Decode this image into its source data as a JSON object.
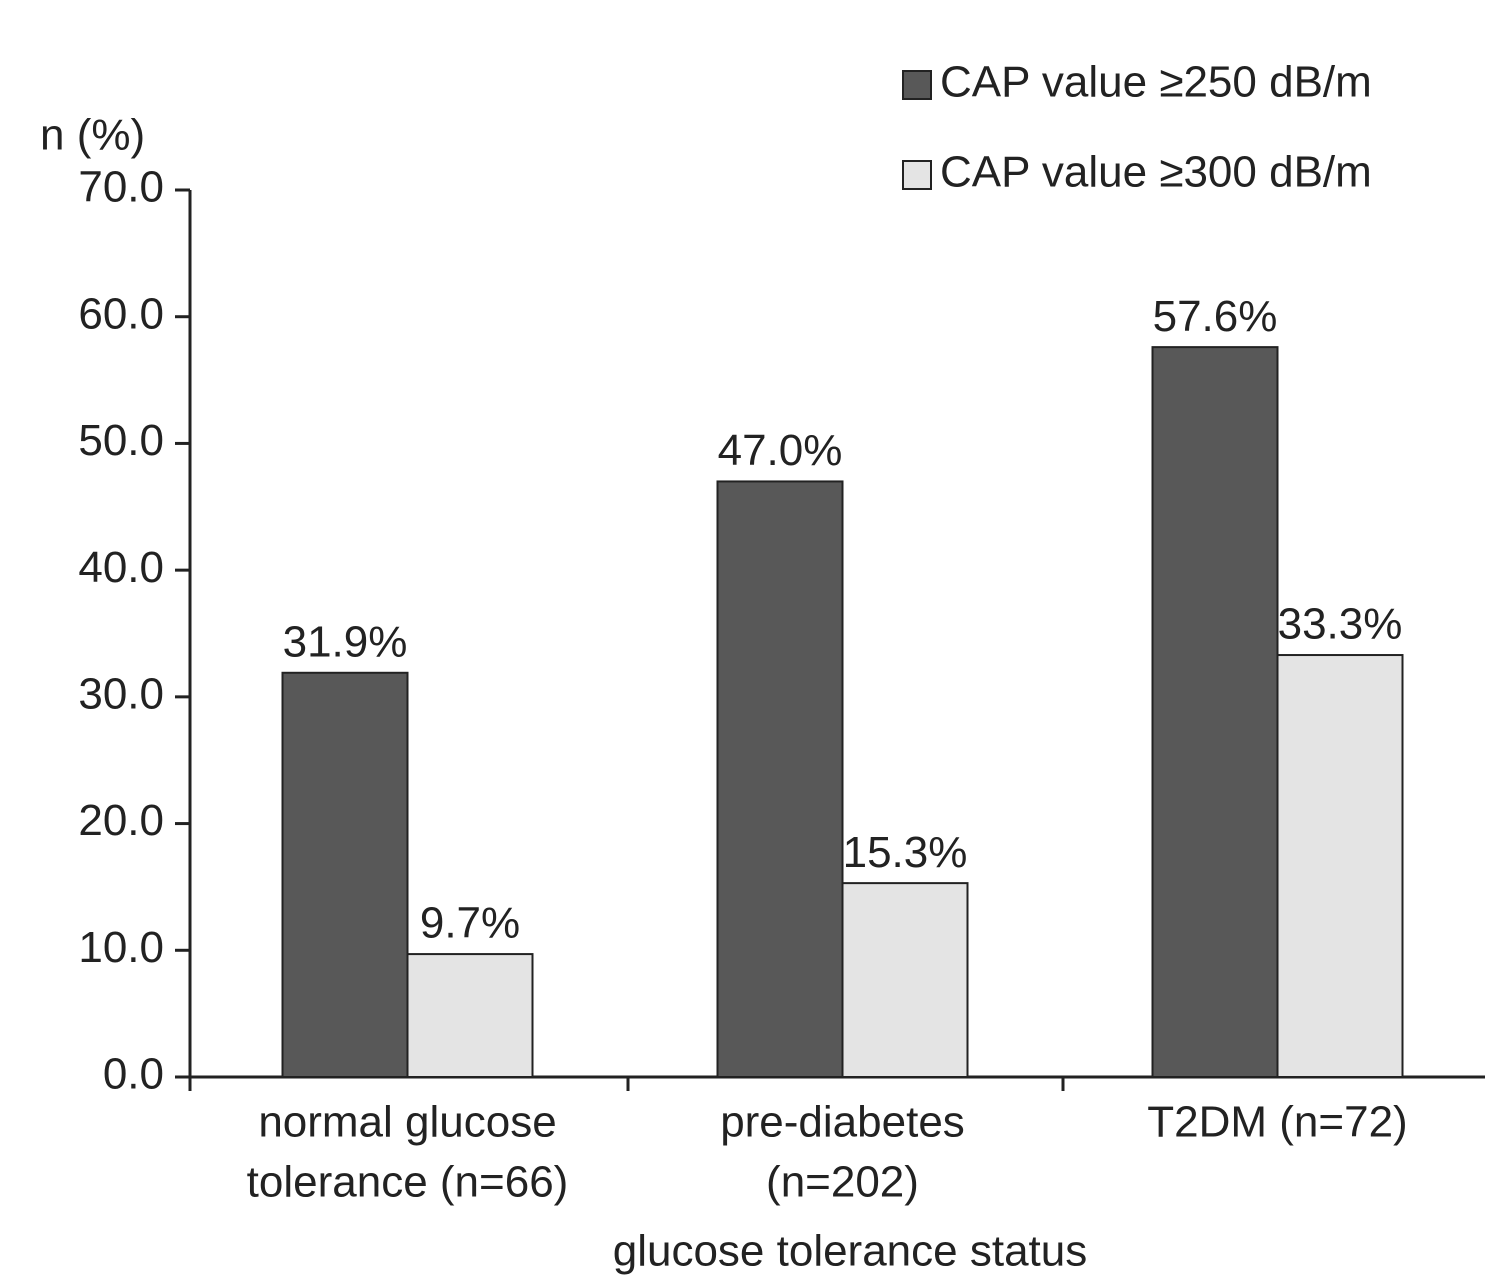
{
  "chart_data": {
    "type": "bar",
    "y_label": "n (%)",
    "x_label": "glucose tolerance status",
    "categories": [
      [
        "normal glucose",
        "tolerance (n=66)"
      ],
      [
        "pre-diabetes",
        "(n=202)"
      ],
      [
        "T2DM (n=72)"
      ]
    ],
    "series": [
      {
        "name": "CAP value ≥250 dB/m",
        "color": "#585858",
        "values": [
          31.9,
          47.0,
          57.6
        ],
        "value_labels": [
          "31.9%",
          "47.0%",
          "57.6%"
        ]
      },
      {
        "name": "CAP value ≥300 dB/m",
        "color": "#e4e4e4",
        "values": [
          9.7,
          15.3,
          33.3
        ],
        "value_labels": [
          "9.7%",
          "15.3%",
          "33.3%"
        ]
      }
    ],
    "ylim": [
      0,
      70
    ],
    "yticks": [
      {
        "value": 0,
        "label": "0.0"
      },
      {
        "value": 10,
        "label": "10.0"
      },
      {
        "value": 20,
        "label": "20.0"
      },
      {
        "value": 30,
        "label": "30.0"
      },
      {
        "value": 40,
        "label": "40.0"
      },
      {
        "value": 50,
        "label": "50.0"
      },
      {
        "value": 60,
        "label": "60.0"
      },
      {
        "value": 70,
        "label": "70.0"
      }
    ],
    "legend": "top-right"
  }
}
